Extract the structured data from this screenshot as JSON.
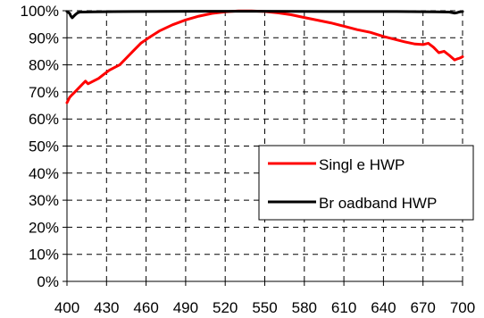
{
  "chart_data": {
    "type": "line",
    "title": "",
    "xlabel": "",
    "ylabel": "",
    "xlim": [
      400,
      700
    ],
    "ylim": [
      0,
      100
    ],
    "x_ticks": [
      "400",
      "430",
      "460",
      "490",
      "520",
      "550",
      "580",
      "610",
      "640",
      "670",
      "700"
    ],
    "y_ticks": [
      "0%",
      "10%",
      "20%",
      "30%",
      "40%",
      "50%",
      "60%",
      "70%",
      "80%",
      "90%",
      "100%"
    ],
    "grid": true,
    "legend_position": "right",
    "series": [
      {
        "name": "Singl e HWP",
        "color": "#ff0000",
        "x": [
          400,
          402,
          404,
          406,
          408,
          410,
          412,
          414,
          416,
          418,
          420,
          424,
          428,
          432,
          436,
          440,
          444,
          450,
          456,
          462,
          470,
          480,
          490,
          500,
          510,
          520,
          530,
          540,
          550,
          560,
          570,
          580,
          590,
          600,
          610,
          620,
          630,
          640,
          648,
          656,
          664,
          670,
          674,
          678,
          682,
          686,
          690,
          694,
          696,
          698,
          700
        ],
        "y": [
          66,
          68,
          69,
          70,
          71,
          72,
          73,
          74,
          73,
          73.5,
          74,
          75,
          76.5,
          78,
          79,
          80,
          82,
          85,
          88,
          90,
          92.5,
          94.8,
          96.6,
          98,
          99,
          99.6,
          99.9,
          99.9,
          99.7,
          99.2,
          98.5,
          97.5,
          96.5,
          95.5,
          94.3,
          93,
          92,
          90.5,
          89.5,
          88.5,
          87.7,
          87.5,
          88,
          86.5,
          84.5,
          85,
          83.5,
          81.8,
          82.2,
          82.5,
          83
        ]
      },
      {
        "name": "Br oadband HWP",
        "color": "#000000",
        "x": [
          400,
          402,
          403,
          404,
          406,
          408,
          410,
          420,
          450,
          500,
          550,
          600,
          650,
          680,
          690,
          694,
          696,
          698,
          700
        ],
        "y": [
          99.7,
          99,
          98,
          97.4,
          98.4,
          99.2,
          99.5,
          99.6,
          99.7,
          99.8,
          99.8,
          99.7,
          99.7,
          99.6,
          99.5,
          99.1,
          99.3,
          99.6,
          99.7
        ]
      }
    ]
  }
}
